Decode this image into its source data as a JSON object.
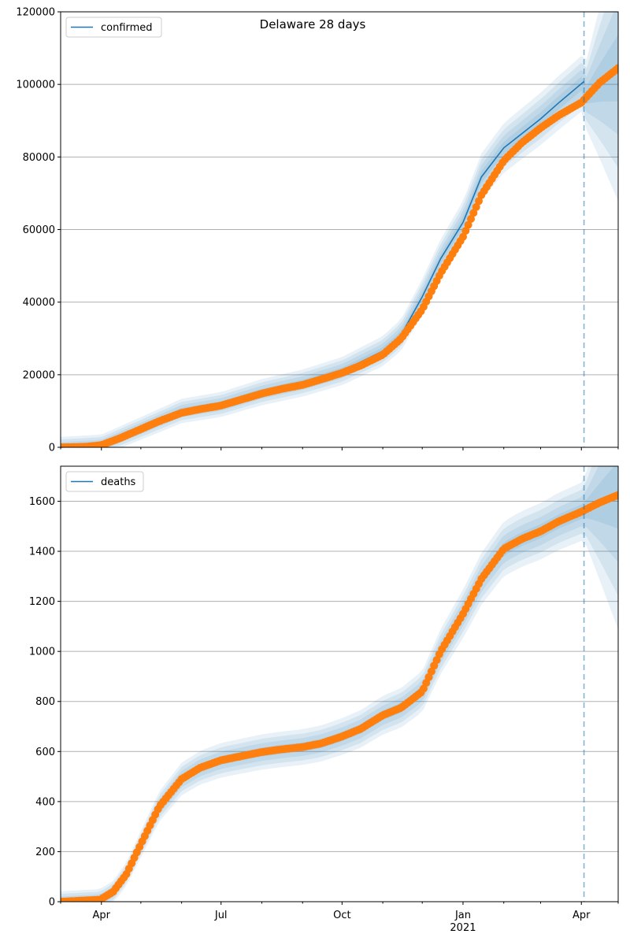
{
  "figure_title": "Delaware 28 days",
  "colors": {
    "model": "#1f77b4",
    "observed": "#ff7f0e",
    "band": "#1f77b4",
    "grid": "#b0b0b0",
    "cutoff": "#1f77b4"
  },
  "x_axis": {
    "tick_labels": [
      "Apr",
      "Jul",
      "Oct",
      "Jan",
      "Apr"
    ],
    "tick_dates": [
      "2020-04-01",
      "2020-07-01",
      "2020-10-01",
      "2021-01-01",
      "2021-04-01"
    ],
    "year_label": "2021",
    "range": [
      "2020-03-01",
      "2021-04-29"
    ],
    "cutoff_date": "2021-04-03"
  },
  "chart_data": [
    {
      "type": "line",
      "legend": "confirmed",
      "legend_position": "top-left",
      "grid": "horizontal",
      "ylim": [
        0,
        120000
      ],
      "yticks": [
        "0",
        "20000",
        "40000",
        "60000",
        "80000",
        "100000",
        "120000"
      ],
      "yvals": [
        0,
        20000,
        40000,
        60000,
        80000,
        100000,
        120000
      ],
      "observed": [
        {
          "date": "2020-03-01",
          "value": 0
        },
        {
          "date": "2020-03-20",
          "value": 150
        },
        {
          "date": "2020-04-01",
          "value": 600
        },
        {
          "date": "2020-04-15",
          "value": 2500
        },
        {
          "date": "2020-05-01",
          "value": 5000
        },
        {
          "date": "2020-05-15",
          "value": 7200
        },
        {
          "date": "2020-06-01",
          "value": 9500
        },
        {
          "date": "2020-06-15",
          "value": 10500
        },
        {
          "date": "2020-07-01",
          "value": 11500
        },
        {
          "date": "2020-07-15",
          "value": 13000
        },
        {
          "date": "2020-08-01",
          "value": 14800
        },
        {
          "date": "2020-08-15",
          "value": 16000
        },
        {
          "date": "2020-09-01",
          "value": 17200
        },
        {
          "date": "2020-09-15",
          "value": 18700
        },
        {
          "date": "2020-10-01",
          "value": 20500
        },
        {
          "date": "2020-10-15",
          "value": 22500
        },
        {
          "date": "2020-11-01",
          "value": 25500
        },
        {
          "date": "2020-11-15",
          "value": 30000
        },
        {
          "date": "2020-12-01",
          "value": 38000
        },
        {
          "date": "2020-12-15",
          "value": 48000
        },
        {
          "date": "2021-01-01",
          "value": 58000
        },
        {
          "date": "2021-01-15",
          "value": 69500
        },
        {
          "date": "2021-02-01",
          "value": 79000
        },
        {
          "date": "2021-02-15",
          "value": 84000
        },
        {
          "date": "2021-03-01",
          "value": 88000
        },
        {
          "date": "2021-03-15",
          "value": 91500
        },
        {
          "date": "2021-04-01",
          "value": 95000
        },
        {
          "date": "2021-04-15",
          "value": 100500
        },
        {
          "date": "2021-04-29",
          "value": 104500
        }
      ],
      "model": [
        {
          "date": "2020-03-01",
          "value": 0
        },
        {
          "date": "2020-04-01",
          "value": 600
        },
        {
          "date": "2020-05-01",
          "value": 5200
        },
        {
          "date": "2020-06-01",
          "value": 10000
        },
        {
          "date": "2020-07-01",
          "value": 11800
        },
        {
          "date": "2020-08-01",
          "value": 15200
        },
        {
          "date": "2020-09-01",
          "value": 17700
        },
        {
          "date": "2020-10-01",
          "value": 21000
        },
        {
          "date": "2020-11-01",
          "value": 26500
        },
        {
          "date": "2020-11-15",
          "value": 31000
        },
        {
          "date": "2020-12-01",
          "value": 41500
        },
        {
          "date": "2020-12-15",
          "value": 52000
        },
        {
          "date": "2021-01-01",
          "value": 62000
        },
        {
          "date": "2021-01-15",
          "value": 74500
        },
        {
          "date": "2021-02-01",
          "value": 82500
        },
        {
          "date": "2021-02-15",
          "value": 86500
        },
        {
          "date": "2021-03-01",
          "value": 90500
        },
        {
          "date": "2021-03-15",
          "value": 95000
        },
        {
          "date": "2021-04-03",
          "value": 100800
        }
      ],
      "forecast": [
        {
          "date": "2021-04-03",
          "value": 96500
        },
        {
          "date": "2021-04-15",
          "value": 100500
        },
        {
          "date": "2021-04-29",
          "value": 104500
        }
      ]
    },
    {
      "type": "line",
      "legend": "deaths",
      "legend_position": "top-left",
      "grid": "horizontal",
      "ylim": [
        0,
        1740
      ],
      "yticks": [
        "0",
        "200",
        "400",
        "600",
        "800",
        "1000",
        "1200",
        "1400",
        "1600"
      ],
      "yvals": [
        0,
        200,
        400,
        600,
        800,
        1000,
        1200,
        1400,
        1600
      ],
      "observed": [
        {
          "date": "2020-03-01",
          "value": 0
        },
        {
          "date": "2020-03-31",
          "value": 8
        },
        {
          "date": "2020-04-10",
          "value": 40
        },
        {
          "date": "2020-04-20",
          "value": 110
        },
        {
          "date": "2020-05-01",
          "value": 230
        },
        {
          "date": "2020-05-15",
          "value": 380
        },
        {
          "date": "2020-06-01",
          "value": 490
        },
        {
          "date": "2020-06-15",
          "value": 535
        },
        {
          "date": "2020-07-01",
          "value": 565
        },
        {
          "date": "2020-07-15",
          "value": 580
        },
        {
          "date": "2020-08-01",
          "value": 598
        },
        {
          "date": "2020-08-15",
          "value": 608
        },
        {
          "date": "2020-09-01",
          "value": 618
        },
        {
          "date": "2020-09-15",
          "value": 632
        },
        {
          "date": "2020-10-01",
          "value": 660
        },
        {
          "date": "2020-10-15",
          "value": 690
        },
        {
          "date": "2020-11-01",
          "value": 745
        },
        {
          "date": "2020-11-15",
          "value": 775
        },
        {
          "date": "2020-12-01",
          "value": 840
        },
        {
          "date": "2020-12-15",
          "value": 1000
        },
        {
          "date": "2021-01-01",
          "value": 1150
        },
        {
          "date": "2021-01-15",
          "value": 1290
        },
        {
          "date": "2021-02-01",
          "value": 1410
        },
        {
          "date": "2021-02-15",
          "value": 1450
        },
        {
          "date": "2021-03-01",
          "value": 1480
        },
        {
          "date": "2021-03-15",
          "value": 1520
        },
        {
          "date": "2021-04-01",
          "value": 1558
        },
        {
          "date": "2021-04-15",
          "value": 1595
        },
        {
          "date": "2021-04-29",
          "value": 1625
        }
      ],
      "forecast": [
        {
          "date": "2021-04-03",
          "value": 1565
        },
        {
          "date": "2021-04-15",
          "value": 1595
        },
        {
          "date": "2021-04-29",
          "value": 1625
        }
      ]
    }
  ]
}
